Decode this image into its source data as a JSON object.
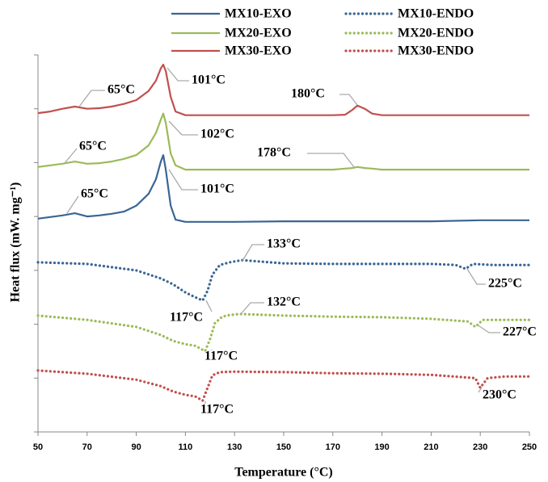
{
  "chart_data": {
    "type": "line",
    "x_label": "Temperature (°C)",
    "y_label": "Heat flux (mW. mg⁻¹)",
    "xlim": [
      50,
      250
    ],
    "xticks": [
      50,
      70,
      90,
      110,
      130,
      150,
      170,
      190,
      210,
      230,
      250
    ],
    "ylim": [
      0,
      7
    ],
    "yticks": [
      0,
      1,
      2,
      3,
      4,
      5,
      6,
      7
    ],
    "grid": false,
    "legend": "top",
    "series": [
      {
        "name": "MX10-EXO",
        "color": "#3a6593",
        "style": "solid",
        "x": [
          50,
          55,
          60,
          65,
          70,
          75,
          80,
          85,
          90,
          95,
          98,
          100,
          101,
          102,
          104,
          106,
          110,
          130,
          150,
          170,
          175,
          178,
          180,
          183,
          186,
          190,
          210,
          230,
          250
        ],
        "values": [
          3.96,
          3.99,
          4.02,
          4.06,
          4.0,
          4.02,
          4.05,
          4.09,
          4.2,
          4.42,
          4.69,
          5.02,
          5.14,
          4.87,
          4.2,
          3.94,
          3.9,
          3.9,
          3.91,
          3.91,
          3.91,
          3.91,
          3.91,
          3.91,
          3.91,
          3.91,
          3.91,
          3.93,
          3.93
        ]
      },
      {
        "name": "MX10-ENDO",
        "color": "#3a6593",
        "style": "dotted",
        "x": [
          50,
          70,
          90,
          100,
          105,
          110,
          114,
          117,
          119,
          121,
          124,
          128,
          133,
          150,
          170,
          190,
          210,
          220,
          224,
          227,
          235,
          250
        ],
        "values": [
          3.15,
          3.12,
          3.0,
          2.85,
          2.74,
          2.59,
          2.5,
          2.44,
          2.62,
          2.92,
          3.1,
          3.15,
          3.19,
          3.13,
          3.12,
          3.12,
          3.12,
          3.1,
          3.03,
          3.12,
          3.1,
          3.1
        ]
      },
      {
        "name": "MX20-EXO",
        "color": "#9bbb59",
        "style": "solid",
        "x": [
          50,
          55,
          60,
          65,
          70,
          75,
          80,
          85,
          90,
          95,
          98,
          100,
          101,
          102,
          104,
          106,
          110,
          130,
          150,
          170,
          175,
          178,
          180,
          183,
          186,
          190,
          210,
          230,
          250
        ],
        "values": [
          4.92,
          4.95,
          4.98,
          5.02,
          4.98,
          4.99,
          5.02,
          5.07,
          5.14,
          5.32,
          5.55,
          5.8,
          5.91,
          5.74,
          5.17,
          4.95,
          4.87,
          4.87,
          4.87,
          4.87,
          4.89,
          4.9,
          4.92,
          4.9,
          4.89,
          4.87,
          4.87,
          4.87,
          4.87
        ]
      },
      {
        "name": "MX20-ENDO",
        "color": "#9bbb59",
        "style": "dotted",
        "x": [
          50,
          70,
          90,
          100,
          105,
          110,
          114,
          118,
          120,
          122,
          125,
          128,
          132,
          150,
          170,
          190,
          210,
          225,
          228,
          231,
          240,
          250
        ],
        "values": [
          2.16,
          2.08,
          1.95,
          1.8,
          1.69,
          1.63,
          1.6,
          1.5,
          1.72,
          2.02,
          2.14,
          2.17,
          2.19,
          2.16,
          2.14,
          2.13,
          2.1,
          2.05,
          1.95,
          2.08,
          2.08,
          2.08
        ]
      },
      {
        "name": "MX30-EXO",
        "color": "#c0504d",
        "style": "solid",
        "x": [
          50,
          55,
          60,
          65,
          70,
          75,
          80,
          85,
          90,
          95,
          98,
          100,
          101,
          102,
          104,
          106,
          110,
          130,
          150,
          170,
          175,
          178,
          180,
          183,
          186,
          190,
          210,
          230,
          250
        ],
        "values": [
          5.92,
          5.95,
          6.0,
          6.04,
          6.0,
          6.01,
          6.04,
          6.09,
          6.16,
          6.33,
          6.52,
          6.75,
          6.82,
          6.7,
          6.22,
          5.95,
          5.88,
          5.88,
          5.88,
          5.88,
          5.89,
          5.98,
          6.06,
          6.0,
          5.91,
          5.88,
          5.88,
          5.88,
          5.88
        ]
      },
      {
        "name": "MX30-ENDO",
        "color": "#c0504d",
        "style": "dotted",
        "x": [
          50,
          70,
          90,
          100,
          105,
          110,
          114,
          117,
          119,
          121,
          124,
          130,
          150,
          170,
          190,
          210,
          228,
          230,
          233,
          240,
          250
        ],
        "values": [
          1.14,
          1.08,
          0.97,
          0.85,
          0.75,
          0.69,
          0.66,
          0.58,
          0.82,
          1.05,
          1.11,
          1.12,
          1.11,
          1.09,
          1.08,
          1.06,
          1.0,
          0.82,
          1.0,
          1.03,
          1.03
        ]
      }
    ],
    "annotations": [
      "65°C",
      "101°C",
      "180°C",
      "65°C",
      "102°C",
      "178°C",
      "65°C",
      "101°C",
      "133°C",
      "225°C",
      "117°C",
      "132°C",
      "227°C",
      "117°C",
      "230°C",
      "117°C"
    ]
  }
}
